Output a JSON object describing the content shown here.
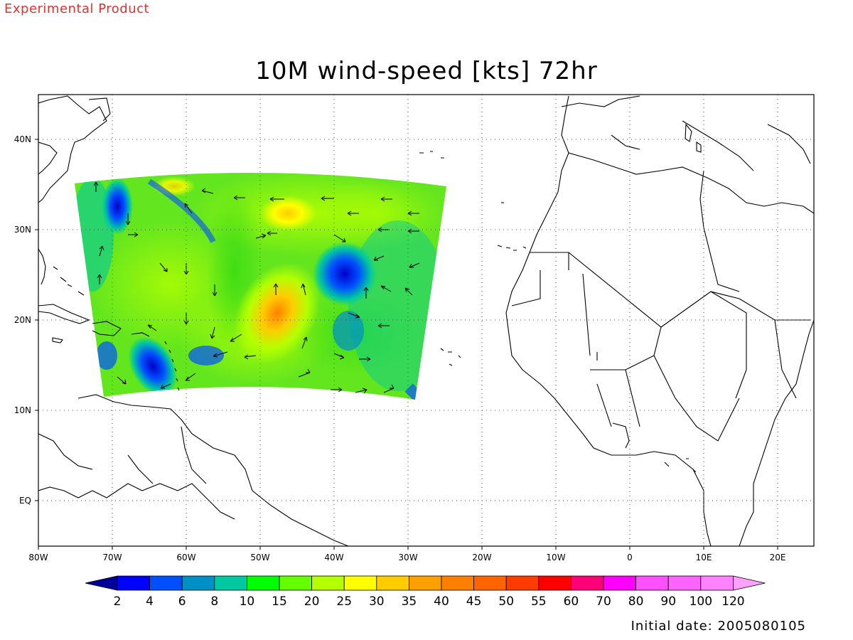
{
  "header": {
    "product_tag": "Experimental Product",
    "title": "10M wind-speed [kts] 72hr",
    "initial_date": "Initial date: 2005080105"
  },
  "map": {
    "lon_ticks": [
      "80W",
      "70W",
      "60W",
      "50W",
      "40W",
      "30W",
      "20W",
      "10W",
      "0",
      "10E",
      "20E"
    ],
    "lat_ticks": [
      "40N",
      "30N",
      "20N",
      "10N",
      "EQ"
    ],
    "grid": "dotted",
    "feature": "Tropical cyclone circulation centered near 20N 47W"
  },
  "colorbar": {
    "labels": [
      "2",
      "4",
      "6",
      "8",
      "10",
      "15",
      "20",
      "25",
      "30",
      "35",
      "40",
      "45",
      "50",
      "55",
      "60",
      "70",
      "80",
      "90",
      "100",
      "120"
    ],
    "colors": [
      "#00009a",
      "#0000ff",
      "#0050ff",
      "#0090c8",
      "#00c8a0",
      "#00ff00",
      "#64ff00",
      "#b4ff00",
      "#ffff00",
      "#ffcc00",
      "#ffa000",
      "#ff8000",
      "#ff6400",
      "#ff3c00",
      "#ff0000",
      "#ff0078",
      "#ff00ff",
      "#ff50ff",
      "#ff64ff",
      "#ff82ff",
      "#ffa0ff"
    ]
  }
}
